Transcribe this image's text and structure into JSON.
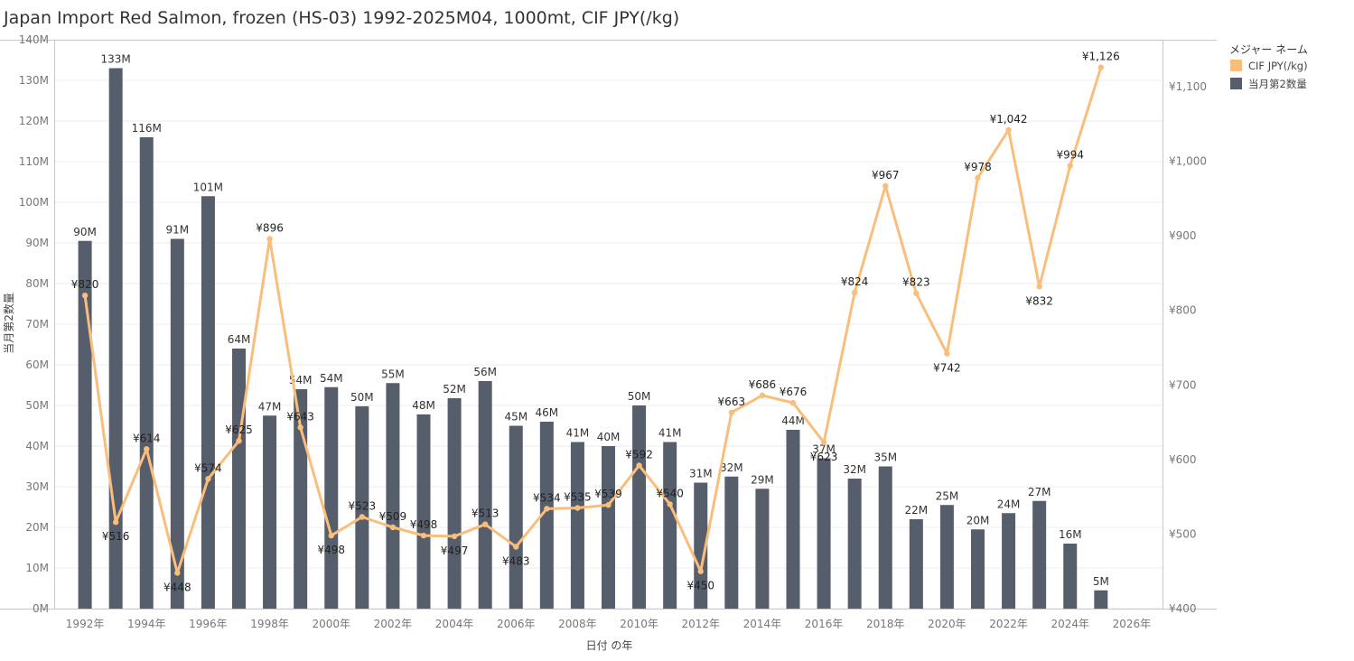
{
  "title": "Japan Import Red Salmon, frozen (HS-03) 1992-2025M04, 1000mt, CIF JPY(/kg)",
  "chart_data": {
    "type": "bar",
    "title": "Japan Import Red Salmon, frozen (HS-03) 1992-2025M04, 1000mt, CIF JPY(/kg)",
    "xlabel": "日付 の年",
    "ylabel": "当月第2数量",
    "x_range": [
      1991,
      2027
    ],
    "x_ticks": [
      1992,
      1994,
      1996,
      1998,
      2000,
      2002,
      2004,
      2006,
      2008,
      2010,
      2012,
      2014,
      2016,
      2018,
      2020,
      2022,
      2024,
      2026
    ],
    "x_tick_labels": [
      "1992年",
      "1994年",
      "1996年",
      "1998年",
      "2000年",
      "2002年",
      "2004年",
      "2006年",
      "2008年",
      "2010年",
      "2012年",
      "2014年",
      "2016年",
      "2018年",
      "2020年",
      "2022年",
      "2024年",
      "2026年"
    ],
    "y_left_ticks": [
      0,
      10,
      20,
      30,
      40,
      50,
      60,
      70,
      80,
      90,
      100,
      110,
      120,
      130,
      140
    ],
    "y_left_tick_labels": [
      "0M",
      "10M",
      "20M",
      "30M",
      "40M",
      "50M",
      "60M",
      "70M",
      "80M",
      "90M",
      "100M",
      "110M",
      "120M",
      "130M",
      "140M"
    ],
    "y_left_range": [
      0,
      140
    ],
    "y_right_ticks": [
      400,
      500,
      600,
      700,
      800,
      900,
      1000,
      1100
    ],
    "y_right_tick_labels": [
      "¥400",
      "¥500",
      "¥600",
      "¥700",
      "¥800",
      "¥900",
      "¥1,000",
      "¥1,100"
    ],
    "y_right_range": [
      400,
      1163
    ],
    "grid": true,
    "legend": {
      "title": "メジャー ネーム",
      "position": "top-right",
      "entries": [
        {
          "name": "CIF JPY(/kg)",
          "color": "#f9be7c"
        },
        {
          "name": "当月第2数量",
          "color": "#565e6b"
        }
      ]
    },
    "series": [
      {
        "name": "当月第2数量",
        "kind": "bar",
        "color": "#565e6b",
        "axis": "left",
        "x": [
          1992,
          1993,
          1994,
          1995,
          1996,
          1997,
          1998,
          1999,
          2000,
          2001,
          2002,
          2003,
          2004,
          2005,
          2006,
          2007,
          2008,
          2009,
          2010,
          2011,
          2012,
          2013,
          2014,
          2015,
          2016,
          2017,
          2018,
          2019,
          2020,
          2021,
          2022,
          2023,
          2024,
          2025
        ],
        "values": [
          90.5,
          133,
          116,
          91,
          101.5,
          64,
          47.5,
          54,
          54.5,
          49.8,
          55.5,
          47.8,
          51.8,
          56,
          45,
          46,
          41,
          40,
          50,
          41,
          31,
          32.5,
          29.5,
          44,
          37,
          32,
          35,
          22,
          25.5,
          19.5,
          23.5,
          26.5,
          16,
          4.5
        ],
        "labels": [
          "90M",
          "133M",
          "116M",
          "91M",
          "101M",
          "64M",
          "47M",
          "54M",
          "54M",
          "50M",
          "55M",
          "48M",
          "52M",
          "56M",
          "45M",
          "46M",
          "41M",
          "40M",
          "50M",
          "41M",
          "31M",
          "32M",
          "29M",
          "44M",
          "37M",
          "32M",
          "35M",
          "22M",
          "25M",
          "20M",
          "24M",
          "27M",
          "16M",
          "5M"
        ]
      },
      {
        "name": "CIF JPY(/kg)",
        "kind": "line",
        "color": "#f9be7c",
        "axis": "right",
        "x": [
          1992,
          1993,
          1994,
          1995,
          1996,
          1997,
          1998,
          1999,
          2000,
          2001,
          2002,
          2003,
          2004,
          2005,
          2006,
          2007,
          2008,
          2009,
          2010,
          2011,
          2012,
          2013,
          2014,
          2015,
          2016,
          2017,
          2018,
          2019,
          2020,
          2021,
          2022,
          2023,
          2024,
          2025
        ],
        "values": [
          820,
          516,
          614,
          448,
          574,
          625,
          896,
          643,
          498,
          523,
          509,
          498,
          497,
          513,
          483,
          534,
          535,
          539,
          592,
          540,
          450,
          663,
          686,
          676,
          623,
          824,
          967,
          823,
          742,
          978,
          1042,
          832,
          994,
          1126
        ],
        "labels": [
          "¥820",
          "¥516",
          "¥614",
          "¥448",
          "¥574",
          "¥625",
          "¥896",
          "¥643",
          "¥498",
          "¥523",
          "¥509",
          "¥498",
          "¥497",
          "¥513",
          "¥483",
          "¥534",
          "¥535",
          "¥539",
          "¥592",
          "¥540",
          "¥450",
          "¥663",
          "¥686",
          "¥676",
          "¥623",
          "¥824",
          "¥967",
          "¥823",
          "¥742",
          "¥978",
          "¥1,042",
          "¥832",
          "¥994",
          "¥1,126"
        ]
      }
    ]
  }
}
